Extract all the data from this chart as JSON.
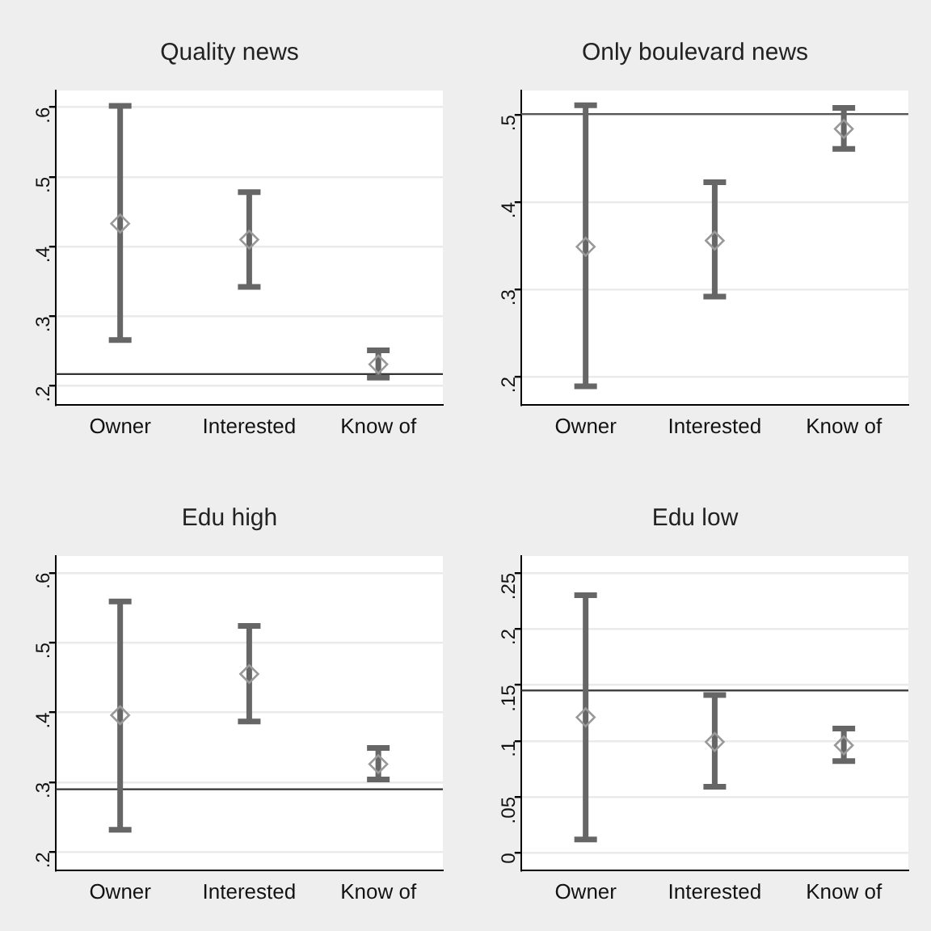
{
  "chart_data": [
    {
      "type": "scatter",
      "title": "Quality news",
      "categories": [
        "Owner",
        "Interested",
        "Know of"
      ],
      "series": [
        {
          "color": "#999999",
          "values": [
            0.433,
            0.41,
            0.231
          ],
          "errors": [
            [
              0.266,
              0.602
            ],
            [
              0.342,
              0.478
            ],
            [
              0.212,
              0.251
            ]
          ]
        }
      ],
      "ylim": [
        0.173,
        0.624
      ],
      "yticks": [
        {
          "value": 0.2,
          "label": ".2"
        },
        {
          "value": 0.3,
          "label": ".3"
        },
        {
          "value": 0.4,
          "label": ".4"
        },
        {
          "value": 0.5,
          "label": ".5"
        },
        {
          "value": 0.6,
          "label": ".6"
        }
      ],
      "ref_lines": [
        {
          "axis": "y",
          "value": 0.217,
          "color": "#333333"
        }
      ],
      "grid": "y",
      "marker": "diamond"
    },
    {
      "type": "scatter",
      "title": "Only boulevard news",
      "categories": [
        "Owner",
        "Interested",
        "Know of"
      ],
      "series": [
        {
          "color": "#999999",
          "values": [
            0.349,
            0.356,
            0.484
          ],
          "errors": [
            [
              0.189,
              0.511
            ],
            [
              0.292,
              0.423
            ],
            [
              0.461,
              0.508
            ]
          ]
        }
      ],
      "ylim": [
        0.168,
        0.528
      ],
      "yticks": [
        {
          "value": 0.2,
          "label": ".2"
        },
        {
          "value": 0.3,
          "label": ".3"
        },
        {
          "value": 0.4,
          "label": ".4"
        },
        {
          "value": 0.5,
          "label": ".5"
        }
      ],
      "ref_lines": [
        {
          "axis": "y",
          "value": 0.501,
          "color": "#555555"
        }
      ],
      "grid": "y",
      "marker": "diamond"
    },
    {
      "type": "scatter",
      "title": "Edu high",
      "categories": [
        "Owner",
        "Interested",
        "Know of"
      ],
      "series": [
        {
          "color": "#999999",
          "values": [
            0.396,
            0.455,
            0.326
          ],
          "errors": [
            [
              0.232,
              0.559
            ],
            [
              0.387,
              0.524
            ],
            [
              0.304,
              0.349
            ]
          ]
        }
      ],
      "ylim": [
        0.174,
        0.624
      ],
      "yticks": [
        {
          "value": 0.2,
          "label": ".2"
        },
        {
          "value": 0.3,
          "label": ".3"
        },
        {
          "value": 0.4,
          "label": ".4"
        },
        {
          "value": 0.5,
          "label": ".5"
        },
        {
          "value": 0.6,
          "label": ".6"
        }
      ],
      "ref_lines": [
        {
          "axis": "y",
          "value": 0.29,
          "color": "#333333"
        }
      ],
      "grid": "y",
      "marker": "diamond"
    },
    {
      "type": "scatter",
      "title": "Edu low",
      "categories": [
        "Owner",
        "Interested",
        "Know of"
      ],
      "series": [
        {
          "color": "#999999",
          "values": [
            0.121,
            0.099,
            0.096
          ],
          "errors": [
            [
              0.012,
              0.23
            ],
            [
              0.059,
              0.141
            ],
            [
              0.082,
              0.111
            ]
          ]
        }
      ],
      "ylim": [
        -0.0155,
        0.265
      ],
      "yticks": [
        0,
        {
          "value": 0.05,
          "label": ".05"
        },
        {
          "value": 0.1,
          "label": ".1"
        },
        {
          "value": 0.15,
          "label": ".15"
        },
        {
          "value": 0.2,
          "label": ".2"
        },
        {
          "value": 0.25,
          "label": ".25"
        }
      ],
      "ref_lines": [
        {
          "axis": "y",
          "value": 0.145,
          "color": "#333333"
        }
      ],
      "grid": "y",
      "marker": "diamond"
    }
  ]
}
